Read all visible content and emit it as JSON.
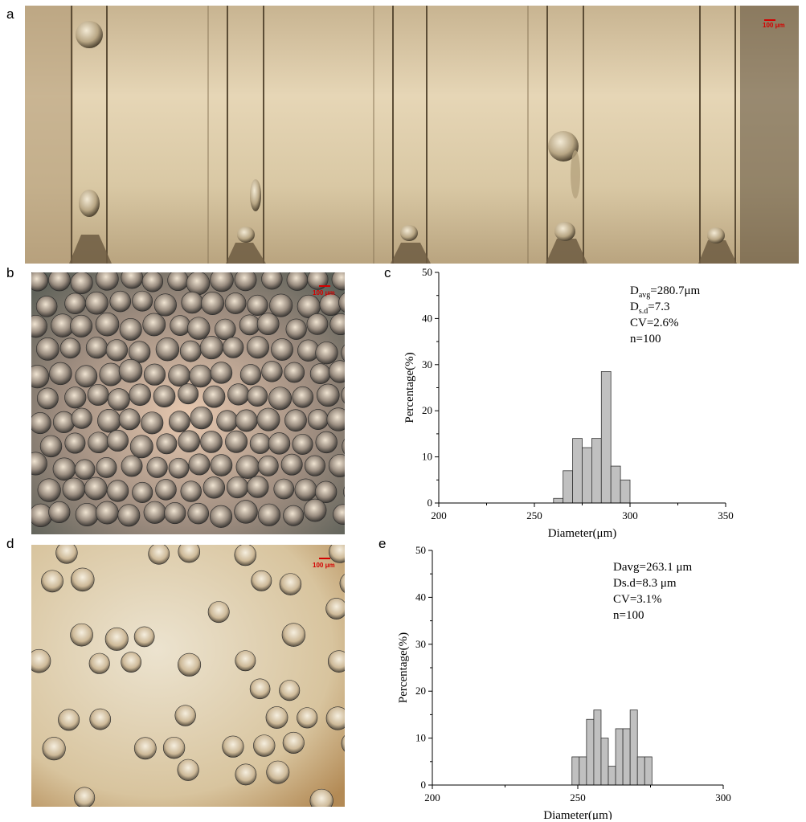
{
  "figure": {
    "panel_labels": {
      "a": "a",
      "b": "b",
      "c": "c",
      "d": "d",
      "e": "e"
    },
    "scale_bar_a": "100 μm",
    "scale_bar_b": "100 μm",
    "scale_bar_d": "100 μm"
  },
  "chart_data": [
    {
      "type": "bar",
      "panel": "c",
      "xlabel": "Diameter(μm)",
      "ylabel": "Percentage(%)",
      "xlim": [
        200,
        350
      ],
      "ylim": [
        0,
        50
      ],
      "xticks": [
        200,
        250,
        300,
        350
      ],
      "yticks": [
        0,
        10,
        20,
        30,
        40,
        50
      ],
      "bin_width": 5,
      "bin_starts": [
        260,
        265,
        270,
        275,
        280,
        285,
        290,
        295
      ],
      "values": [
        1,
        7,
        14,
        12,
        14,
        28.5,
        8,
        5
      ],
      "annotation": [
        {
          "main": "D",
          "sub": "avg",
          "rest": "=280.7μm"
        },
        {
          "main": "D",
          "sub": "s.d",
          "rest": "=7.3"
        },
        {
          "main": "CV=2.6%",
          "sub": "",
          "rest": ""
        },
        {
          "main": "n=100",
          "sub": "",
          "rest": ""
        }
      ]
    },
    {
      "type": "bar",
      "panel": "e",
      "xlabel": "Diameter(μm)",
      "ylabel": "Percentage(%)",
      "xlim": [
        200,
        300
      ],
      "ylim": [
        0,
        50
      ],
      "xticks": [
        200,
        250,
        300
      ],
      "yticks": [
        0,
        10,
        20,
        30,
        40,
        50
      ],
      "bin_width": 2.5,
      "bin_starts": [
        248,
        250.5,
        253,
        255.5,
        258,
        260.5,
        263,
        265.5,
        268,
        270.5,
        273
      ],
      "values": [
        6,
        6,
        14,
        16,
        10,
        4,
        12,
        12,
        16,
        6,
        6
      ],
      "annotation": [
        {
          "main": "Davg=263.1 μm",
          "sub": "",
          "rest": ""
        },
        {
          "main": "Ds.d=8.3 μm",
          "sub": "",
          "rest": ""
        },
        {
          "main": "CV=3.1%",
          "sub": "",
          "rest": ""
        },
        {
          "main": "n=100",
          "sub": "",
          "rest": ""
        }
      ]
    }
  ]
}
